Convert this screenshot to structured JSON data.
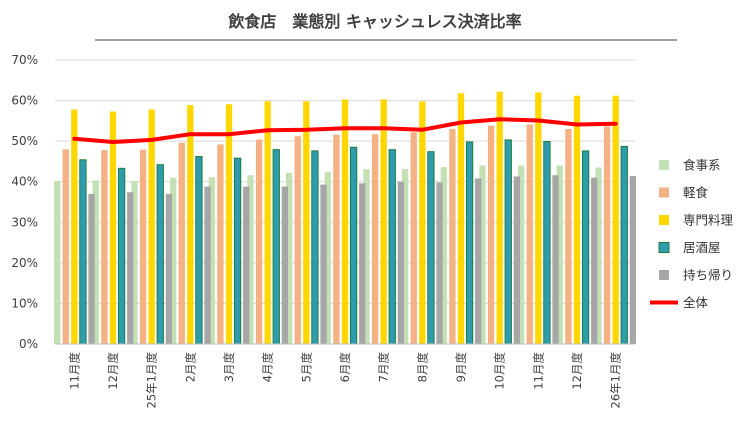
{
  "chart_data": {
    "type": "bar",
    "title": "飲食店　業態別 キャッシュレス決済比率",
    "categories": [
      "11月度",
      "12月度",
      "25年1月度",
      "2月度",
      "3月度",
      "4月度",
      "5月度",
      "6月度",
      "7月度",
      "8月度",
      "9月度",
      "10月度",
      "11月度",
      "12月度",
      "26年1月度"
    ],
    "y_ticks": [
      "0%",
      "10%",
      "20%",
      "30%",
      "40%",
      "50%",
      "60%",
      "70%"
    ],
    "ylim": [
      0,
      70
    ],
    "grid": true,
    "legend_position": "right",
    "series": [
      {
        "name": "食事系",
        "type": "bar",
        "color": "#c5e0b4",
        "values": [
          40.2,
          40.3,
          40.2,
          41.0,
          41.1,
          41.6,
          42.2,
          42.4,
          43.1,
          43.1,
          43.6,
          44.0,
          44.0,
          44.0,
          43.5
        ]
      },
      {
        "name": "軽食",
        "type": "bar",
        "color": "#f4b183",
        "values": [
          48.0,
          47.8,
          47.9,
          49.6,
          49.2,
          50.4,
          51.2,
          51.6,
          51.7,
          52.2,
          53.0,
          53.8,
          54.1,
          53.0,
          53.6
        ]
      },
      {
        "name": "専門料理",
        "type": "bar",
        "color": "#ffd700",
        "values": [
          57.8,
          57.3,
          57.8,
          58.9,
          59.1,
          59.8,
          59.8,
          60.3,
          60.3,
          59.8,
          61.8,
          62.2,
          62.0,
          61.2,
          61.2
        ]
      },
      {
        "name": "居酒屋",
        "type": "bar",
        "color": "#2e9cae",
        "values": [
          45.4,
          43.3,
          44.2,
          46.2,
          45.8,
          47.9,
          47.6,
          48.5,
          47.9,
          47.4,
          49.8,
          50.3,
          49.9,
          47.6,
          48.7
        ]
      },
      {
        "name": "持ち帰り",
        "type": "bar",
        "color": "#a6a6a6",
        "values": [
          37.0,
          37.4,
          37.0,
          38.8,
          38.8,
          38.8,
          39.3,
          39.6,
          40.0,
          39.8,
          40.8,
          41.3,
          41.6,
          41.0,
          41.4
        ]
      },
      {
        "name": "全体",
        "type": "line",
        "color": "#ff0000",
        "values": [
          50.6,
          49.8,
          50.3,
          51.7,
          51.7,
          52.7,
          52.8,
          53.2,
          53.2,
          52.8,
          54.6,
          55.4,
          55.1,
          54.1,
          54.3
        ]
      }
    ]
  }
}
